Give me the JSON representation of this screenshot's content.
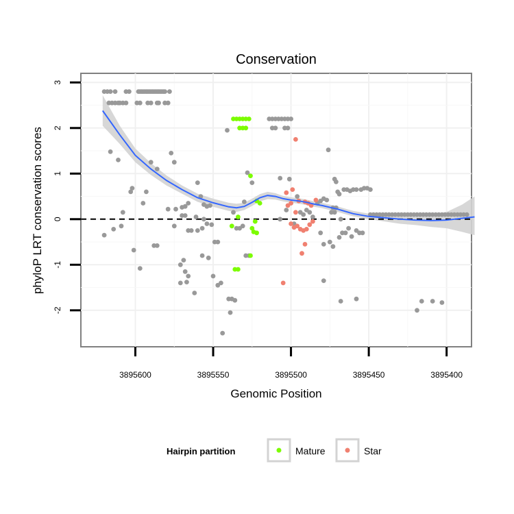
{
  "chart_data": {
    "type": "scatter",
    "title": "Conservation",
    "xlabel": "Genomic Position",
    "ylabel": "phyloP LRT conservation scores",
    "xlim": [
      3895635,
      3895384
    ],
    "ylim": [
      -2.8,
      3.2
    ],
    "x_reversed": true,
    "x_ticks": [
      3895600,
      3895550,
      3895500,
      3895450,
      3895400
    ],
    "x_tick_labels": [
      "3895600",
      "3895550",
      "3895500",
      "3895450",
      "3895400"
    ],
    "y_ticks": [
      -2,
      -1,
      0,
      1,
      2,
      3
    ],
    "y_tick_labels": [
      "-2",
      "-1",
      "0",
      "1",
      "2",
      "3"
    ],
    "reference_line": {
      "y": 0,
      "style": "dashed",
      "color": "#000000"
    },
    "legend": {
      "title": "Hairpin partition",
      "position": "bottom",
      "entries": [
        {
          "label": "Mature",
          "color": "#7cfc00"
        },
        {
          "label": "Star",
          "color": "#f08070"
        }
      ]
    },
    "colors": {
      "other": "#999999",
      "Mature": "#7cfc00",
      "Star": "#f08070",
      "smooth": "#3366ff",
      "ribbon": "#d3d3d3"
    },
    "series": [
      {
        "name": "Other",
        "color": "#999999",
        "points": [
          [
            3895620,
            2.8
          ],
          [
            3895618,
            2.8
          ],
          [
            3895616,
            2.8
          ],
          [
            3895613,
            2.8
          ],
          [
            3895606,
            2.8
          ],
          [
            3895604,
            2.8
          ],
          [
            3895598,
            2.8
          ],
          [
            3895597,
            2.8
          ],
          [
            3895596,
            2.8
          ],
          [
            3895595,
            2.8
          ],
          [
            3895594,
            2.8
          ],
          [
            3895593,
            2.8
          ],
          [
            3895592,
            2.8
          ],
          [
            3895591,
            2.8
          ],
          [
            3895590,
            2.8
          ],
          [
            3895589,
            2.8
          ],
          [
            3895588,
            2.8
          ],
          [
            3895587,
            2.8
          ],
          [
            3895586,
            2.8
          ],
          [
            3895585,
            2.8
          ],
          [
            3895584,
            2.8
          ],
          [
            3895583,
            2.8
          ],
          [
            3895582,
            2.8
          ],
          [
            3895581,
            2.8
          ],
          [
            3895578,
            2.8
          ],
          [
            3895617,
            2.55
          ],
          [
            3895615,
            2.55
          ],
          [
            3895613,
            2.55
          ],
          [
            3895611,
            2.55
          ],
          [
            3895610,
            2.55
          ],
          [
            3895608,
            2.55
          ],
          [
            3895606,
            2.55
          ],
          [
            3895599,
            2.55
          ],
          [
            3895597,
            2.55
          ],
          [
            3895592,
            2.55
          ],
          [
            3895590,
            2.55
          ],
          [
            3895586,
            2.55
          ],
          [
            3895585,
            2.55
          ],
          [
            3895581,
            2.55
          ],
          [
            3895579,
            2.55
          ],
          [
            3895616,
            1.48
          ],
          [
            3895611,
            1.3
          ],
          [
            3895603,
            0.6
          ],
          [
            3895602,
            0.68
          ],
          [
            3895593,
            0.6
          ],
          [
            3895595,
            0.35
          ],
          [
            3895601,
            -0.68
          ],
          [
            3895597,
            -1.08
          ],
          [
            3895608,
            0.15
          ],
          [
            3895609,
            -0.15
          ],
          [
            3895614,
            -0.22
          ],
          [
            3895620,
            -0.35
          ],
          [
            3895590,
            1.25
          ],
          [
            3895586,
            1.1
          ],
          [
            3895588,
            -0.58
          ],
          [
            3895586,
            -0.58
          ],
          [
            3895577,
            1.45
          ],
          [
            3895575,
            1.25
          ],
          [
            3895579,
            0.22
          ],
          [
            3895574,
            0.22
          ],
          [
            3895570,
            0.26
          ],
          [
            3895568,
            0.28
          ],
          [
            3895566,
            0.35
          ],
          [
            3895575,
            -0.15
          ],
          [
            3895571,
            -1.0
          ],
          [
            3895569,
            -0.9
          ],
          [
            3895568,
            -1.15
          ],
          [
            3895566,
            -1.25
          ],
          [
            3895571,
            -1.4
          ],
          [
            3895567,
            -1.38
          ],
          [
            3895562,
            -1.62
          ],
          [
            3895570,
            0.08
          ],
          [
            3895568,
            0.08
          ],
          [
            3895566,
            -0.25
          ],
          [
            3895564,
            -0.25
          ],
          [
            3895561,
            0.05
          ],
          [
            3895560,
            0.8
          ],
          [
            3895558,
            0.5
          ],
          [
            3895556,
            0.32
          ],
          [
            3895554,
            0.28
          ],
          [
            3895552,
            0.3
          ],
          [
            3895560,
            -0.25
          ],
          [
            3895557,
            -0.2
          ],
          [
            3895556,
            0.0
          ],
          [
            3895554,
            -0.1
          ],
          [
            3895551,
            -0.12
          ],
          [
            3895549,
            -0.5
          ],
          [
            3895547,
            -0.5
          ],
          [
            3895557,
            -0.8
          ],
          [
            3895553,
            -0.85
          ],
          [
            3895550,
            -1.25
          ],
          [
            3895547,
            -1.45
          ],
          [
            3895545,
            -1.4
          ],
          [
            3895541,
            1.95
          ],
          [
            3895540,
            -1.75
          ],
          [
            3895538,
            -1.75
          ],
          [
            3895536,
            -1.78
          ],
          [
            3895539,
            -2.05
          ],
          [
            3895544,
            -2.5
          ],
          [
            3895537,
            0.15
          ],
          [
            3895535,
            -0.2
          ],
          [
            3895533,
            -0.2
          ],
          [
            3895530,
            0.38
          ],
          [
            3895528,
            1.02
          ],
          [
            3895525,
            0.8
          ],
          [
            3895527,
            -0.8
          ],
          [
            3895529,
            -0.8
          ],
          [
            3895531,
            -0.15
          ],
          [
            3895514,
            2.2
          ],
          [
            3895512,
            2.2
          ],
          [
            3895510,
            2.2
          ],
          [
            3895508,
            2.2
          ],
          [
            3895506,
            2.2
          ],
          [
            3895504,
            2.2
          ],
          [
            3895502,
            2.2
          ],
          [
            3895500,
            2.2
          ],
          [
            3895512,
            2.0
          ],
          [
            3895510,
            2.0
          ],
          [
            3895504,
            2.0
          ],
          [
            3895502,
            2.0
          ],
          [
            3895507,
            0.9
          ],
          [
            3895501,
            0.88
          ],
          [
            3895496,
            0.5
          ],
          [
            3895494,
            0.15
          ],
          [
            3895492,
            0.1
          ],
          [
            3895490,
            0.2
          ],
          [
            3895488,
            0.15
          ],
          [
            3895486,
            0.05
          ],
          [
            3895507,
            0.0
          ],
          [
            3895503,
            0.2
          ],
          [
            3895498,
            -0.1
          ],
          [
            3895483,
            0.35
          ],
          [
            3895481,
            0.4
          ],
          [
            3895479,
            0.45
          ],
          [
            3895477,
            0.42
          ],
          [
            3895473,
            0.25
          ],
          [
            3895471,
            0.25
          ],
          [
            3895470,
            0.6
          ],
          [
            3895469,
            0.55
          ],
          [
            3895466,
            0.65
          ],
          [
            3895464,
            0.65
          ],
          [
            3895462,
            0.62
          ],
          [
            3895460,
            0.65
          ],
          [
            3895458,
            0.65
          ],
          [
            3895455,
            0.65
          ],
          [
            3895453,
            0.68
          ],
          [
            3895451,
            0.68
          ],
          [
            3895449,
            0.65
          ],
          [
            3895468,
            0.0
          ],
          [
            3895474,
            0.15
          ],
          [
            3895472,
            0.15
          ],
          [
            3895481,
            -0.3
          ],
          [
            3895479,
            -0.55
          ],
          [
            3895479,
            -1.35
          ],
          [
            3895476,
            1.52
          ],
          [
            3895472,
            0.88
          ],
          [
            3895471,
            0.82
          ],
          [
            3895475,
            -0.5
          ],
          [
            3895473,
            -0.6
          ],
          [
            3895469,
            -0.4
          ],
          [
            3895467,
            -0.3
          ],
          [
            3895465,
            -0.3
          ],
          [
            3895463,
            -0.2
          ],
          [
            3895461,
            -0.38
          ],
          [
            3895458,
            -0.25
          ],
          [
            3895456,
            -0.3
          ],
          [
            3895454,
            -0.3
          ],
          [
            3895468,
            -1.8
          ],
          [
            3895458,
            -1.75
          ],
          [
            3895449,
            0.1
          ],
          [
            3895447,
            0.1
          ],
          [
            3895445,
            0.1
          ],
          [
            3895443,
            0.1
          ],
          [
            3895441,
            0.1
          ],
          [
            3895439,
            0.1
          ],
          [
            3895437,
            0.1
          ],
          [
            3895435,
            0.1
          ],
          [
            3895433,
            0.1
          ],
          [
            3895431,
            0.1
          ],
          [
            3895429,
            0.1
          ],
          [
            3895427,
            0.1
          ],
          [
            3895425,
            0.1
          ],
          [
            3895423,
            0.1
          ],
          [
            3895421,
            0.1
          ],
          [
            3895419,
            0.1
          ],
          [
            3895417,
            0.1
          ],
          [
            3895415,
            0.1
          ],
          [
            3895413,
            0.1
          ],
          [
            3895411,
            0.1
          ],
          [
            3895409,
            0.1
          ],
          [
            3895407,
            0.1
          ],
          [
            3895405,
            0.1
          ],
          [
            3895403,
            0.1
          ],
          [
            3895401,
            0.1
          ],
          [
            3895399,
            0.1
          ],
          [
            3895397,
            0.1
          ],
          [
            3895395,
            0.1
          ],
          [
            3895393,
            0.1
          ],
          [
            3895391,
            0.1
          ],
          [
            3895389,
            0.1
          ],
          [
            3895387,
            0.1
          ],
          [
            3895416,
            -1.8
          ],
          [
            3895409,
            -1.8
          ],
          [
            3895403,
            -1.83
          ],
          [
            3895419,
            -2.0
          ]
        ]
      },
      {
        "name": "Mature",
        "color": "#7cfc00",
        "points": [
          [
            3895537,
            2.2
          ],
          [
            3895535,
            2.2
          ],
          [
            3895533,
            2.2
          ],
          [
            3895531,
            2.2
          ],
          [
            3895529,
            2.2
          ],
          [
            3895527,
            2.2
          ],
          [
            3895533,
            2.0
          ],
          [
            3895531,
            2.0
          ],
          [
            3895529,
            2.0
          ],
          [
            3895526,
            0.95
          ],
          [
            3895522,
            0.4
          ],
          [
            3895520,
            0.35
          ],
          [
            3895523,
            -0.05
          ],
          [
            3895525,
            -0.2
          ],
          [
            3895524,
            -0.28
          ],
          [
            3895522,
            -0.3
          ],
          [
            3895538,
            -0.15
          ],
          [
            3895534,
            0.05
          ],
          [
            3895526,
            -0.8
          ],
          [
            3895534,
            -1.1
          ],
          [
            3895536,
            -1.1
          ]
        ]
      },
      {
        "name": "Star",
        "color": "#f08070",
        "points": [
          [
            3895497,
            1.75
          ],
          [
            3895499,
            0.65
          ],
          [
            3895503,
            0.58
          ],
          [
            3895495,
            0.4
          ],
          [
            3895491,
            0.38
          ],
          [
            3895484,
            0.42
          ],
          [
            3895489,
            0.35
          ],
          [
            3895487,
            0.3
          ],
          [
            3895500,
            0.35
          ],
          [
            3895502,
            0.3
          ],
          [
            3895497,
            0.15
          ],
          [
            3895500,
            -0.1
          ],
          [
            3895498,
            -0.18
          ],
          [
            3895496,
            -0.15
          ],
          [
            3895494,
            -0.22
          ],
          [
            3895492,
            -0.25
          ],
          [
            3895490,
            -0.22
          ],
          [
            3895488,
            -0.12
          ],
          [
            3895486,
            -0.05
          ],
          [
            3895491,
            -0.55
          ],
          [
            3895493,
            -0.75
          ],
          [
            3895505,
            -1.4
          ]
        ]
      }
    ],
    "smooth": {
      "x": [
        3895621,
        3895610,
        3895600,
        3895590,
        3895580,
        3895570,
        3895560,
        3895550,
        3895540,
        3895535,
        3895530,
        3895525,
        3895520,
        3895515,
        3895510,
        3895505,
        3895500,
        3895495,
        3895490,
        3895485,
        3895480,
        3895470,
        3895460,
        3895450,
        3895440,
        3895430,
        3895420,
        3895410,
        3895400,
        3895390,
        3895382
      ],
      "y": [
        2.38,
        1.85,
        1.4,
        1.1,
        0.85,
        0.65,
        0.47,
        0.36,
        0.27,
        0.25,
        0.28,
        0.37,
        0.47,
        0.52,
        0.5,
        0.45,
        0.42,
        0.4,
        0.37,
        0.33,
        0.3,
        0.22,
        0.12,
        0.06,
        0.03,
        0.0,
        -0.02,
        -0.03,
        -0.02,
        0.02,
        0.05
      ],
      "lower": [
        2.05,
        1.65,
        1.25,
        0.97,
        0.74,
        0.56,
        0.38,
        0.27,
        0.18,
        0.16,
        0.2,
        0.29,
        0.39,
        0.44,
        0.43,
        0.39,
        0.36,
        0.34,
        0.31,
        0.27,
        0.24,
        0.16,
        0.06,
        0.0,
        -0.05,
        -0.1,
        -0.13,
        -0.17,
        -0.2,
        -0.28,
        -0.35
      ],
      "upper": [
        2.72,
        2.05,
        1.55,
        1.23,
        0.96,
        0.74,
        0.56,
        0.45,
        0.36,
        0.34,
        0.36,
        0.45,
        0.55,
        0.6,
        0.57,
        0.51,
        0.48,
        0.46,
        0.43,
        0.39,
        0.36,
        0.28,
        0.18,
        0.12,
        0.11,
        0.1,
        0.09,
        0.11,
        0.16,
        0.32,
        0.5
      ]
    }
  }
}
